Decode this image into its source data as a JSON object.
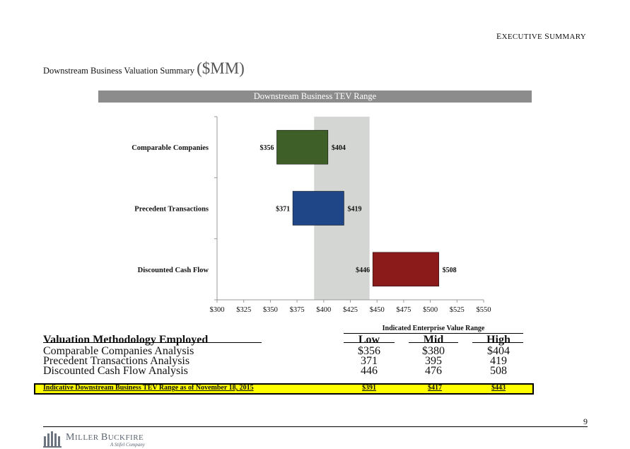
{
  "header": {
    "section_first": "E",
    "section_rest": "XECUTIVE ",
    "section_first2": "S",
    "section_rest2": "UMMARY",
    "title": "Downstream Business Valuation Summary",
    "title_unit": "($MM)"
  },
  "chart_data": {
    "type": "bar",
    "orientation": "horizontal-floating",
    "title": "Downstream Business TEV Range",
    "categories": [
      "Comparable Companies",
      "Precedent Transactions",
      "Discounted Cash Flow"
    ],
    "series": [
      {
        "low": 356,
        "high": 404,
        "low_label": "$356",
        "high_label": "$404",
        "color": "#3f5f28"
      },
      {
        "low": 371,
        "high": 419,
        "low_label": "$371",
        "high_label": "$419",
        "color": "#1f4788"
      },
      {
        "low": 446,
        "high": 508,
        "low_label": "$446",
        "high_label": "$508",
        "color": "#8b1a1a"
      }
    ],
    "reference_band": {
      "low": 391,
      "high": 443,
      "color": "#d3d6d3"
    },
    "xlim": [
      300,
      550
    ],
    "xticks": [
      300,
      325,
      350,
      375,
      400,
      425,
      450,
      475,
      500,
      525,
      550
    ],
    "xtick_labels": [
      "$300",
      "$325",
      "$350",
      "$375",
      "$400",
      "$425",
      "$450",
      "$475",
      "$500",
      "$525",
      "$550"
    ],
    "grid": false
  },
  "table": {
    "group_header": "Indicated Enterprise Value Range",
    "col_label": "Valuation Methodology Employed",
    "col_low": "Low",
    "col_mid": "Mid",
    "col_high": "High",
    "rows": [
      {
        "label": "Comparable Companies Analysis",
        "low": "$356",
        "mid": "$380",
        "high": "$404"
      },
      {
        "label": "Precedent Transactions Analysis",
        "low": "371",
        "mid": "395",
        "high": "419"
      },
      {
        "label": "Discounted Cash Flow Analysis",
        "low": "446",
        "mid": "476",
        "high": "508"
      }
    ],
    "summary": {
      "label": "Indicative Downstream Business TEV Range as of November 18, 2015",
      "low": "$391",
      "mid": "$417",
      "high": "$443"
    }
  },
  "footer": {
    "page_number": "9",
    "logo_name_first": "M",
    "logo_name_rest": "ILLER ",
    "logo_name_first2": "B",
    "logo_name_rest2": "UCKFIRE",
    "logo_tag": "A Stifel Company",
    "logo_color": "#5a6470"
  }
}
